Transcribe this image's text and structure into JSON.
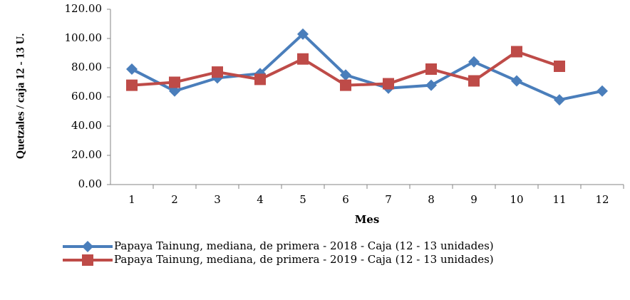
{
  "chart_data": {
    "type": "line",
    "x_label": "Mes",
    "y_label": "Quetzales / caja 12 - 13 U.",
    "categories": [
      "1",
      "2",
      "3",
      "4",
      "5",
      "6",
      "7",
      "8",
      "9",
      "10",
      "11",
      "12"
    ],
    "series": [
      {
        "name": "Papaya Tainung, mediana, de primera - 2018 - Caja (12 - 13 unidades)",
        "color": "#4a7ebb",
        "marker": "diamond",
        "values": [
          79,
          64,
          73,
          76,
          103,
          75,
          66,
          68,
          84,
          71,
          58,
          64
        ]
      },
      {
        "name": "Papaya Tainung, mediana, de primera - 2019 - Caja (12 - 13 unidades)",
        "color": "#be4b48",
        "marker": "square",
        "values": [
          68,
          70,
          77,
          72,
          86,
          68,
          69,
          79,
          71,
          91,
          81,
          null
        ]
      }
    ],
    "ylim": [
      0,
      120
    ],
    "yticks": [
      {
        "value": 0,
        "label": "0.00"
      },
      {
        "value": 20,
        "label": "20.00"
      },
      {
        "value": 40,
        "label": "40.00"
      },
      {
        "value": 60,
        "label": "60.00"
      },
      {
        "value": 80,
        "label": "80.00"
      },
      {
        "value": 100,
        "label": "100.00"
      },
      {
        "value": 120,
        "label": "120.00"
      }
    ],
    "grid": false
  }
}
